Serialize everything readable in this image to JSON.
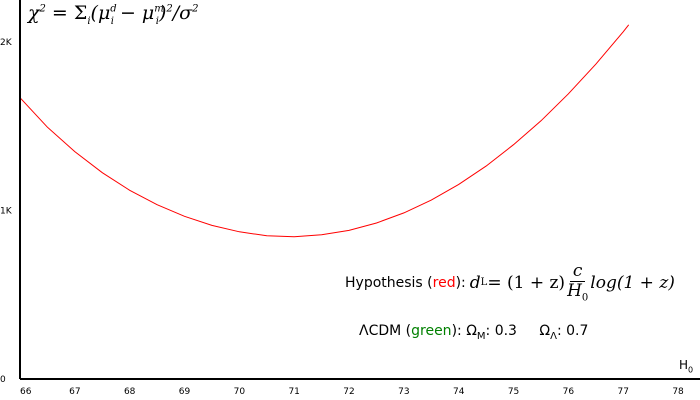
{
  "chart_data": {
    "type": "line",
    "title": "",
    "xlabel": "H",
    "xlabel_sub": "0",
    "ylabel_formula": {
      "prefix": "χ",
      "prefix_sup": "2",
      "eq": " = Σ",
      "eq_sub": "i",
      "open": "(μ",
      "mu_d_sup": "d",
      "mu_d_sub": "i",
      "minus": " − μ",
      "mu_m_sup": "m",
      "mu_m_sub": "i",
      "close": ")",
      "close_sup": "2",
      "div": "/σ",
      "div_sup": "2"
    },
    "xlim": [
      66,
      78.4
    ],
    "ylim": [
      0,
      2250
    ],
    "xticks": [
      "66",
      "67",
      "68",
      "69",
      "70",
      "71",
      "72",
      "73",
      "74",
      "75",
      "76",
      "77",
      "78"
    ],
    "yticks": [
      {
        "label": "0",
        "value": 0
      },
      {
        "label": "1K",
        "value": 1000
      },
      {
        "label": "2K",
        "value": 2000
      }
    ],
    "series": [
      {
        "color": "#ff0000",
        "x": [
          66.0,
          66.5,
          67.0,
          67.5,
          68.0,
          68.5,
          69.0,
          69.5,
          70.0,
          70.5,
          71.0,
          71.5,
          72.0,
          72.5,
          73.0,
          73.5,
          74.0,
          74.5,
          75.0,
          75.5,
          76.0,
          76.5,
          77.0,
          77.1
        ],
        "y": [
          1670,
          1495,
          1350,
          1225,
          1120,
          1035,
          966,
          912,
          874,
          850,
          845,
          856,
          882,
          926,
          986,
          1062,
          1155,
          1264,
          1391,
          1533,
          1693,
          1869,
          2061,
          2103
        ]
      }
    ],
    "vertical_marker": {
      "color": "#2e7d32",
      "x": 66,
      "y_from": 1670,
      "y_to": 2250
    },
    "grid": false,
    "legend": {
      "hypothesis_label": "Hypothesis (",
      "hypothesis_color_word": "red",
      "hypothesis_after": "):",
      "hypothesis_formula": {
        "lhs": "d",
        "lhs_sub": "L",
        "mid": " = (1 + z)",
        "frac_num": "c",
        "frac_den": "H",
        "frac_den_sub": "0",
        "rhs": "log(1 + z)"
      },
      "lcdm_label": "ΛCDM (",
      "lcdm_color_word": "green",
      "lcdm_after": "): Ω",
      "omega_m_sub": "M",
      "omega_m_value": ":  0.3",
      "omega_l_label": "Ω",
      "omega_l_sub": "Λ",
      "omega_l_value": ":  0.7"
    }
  }
}
